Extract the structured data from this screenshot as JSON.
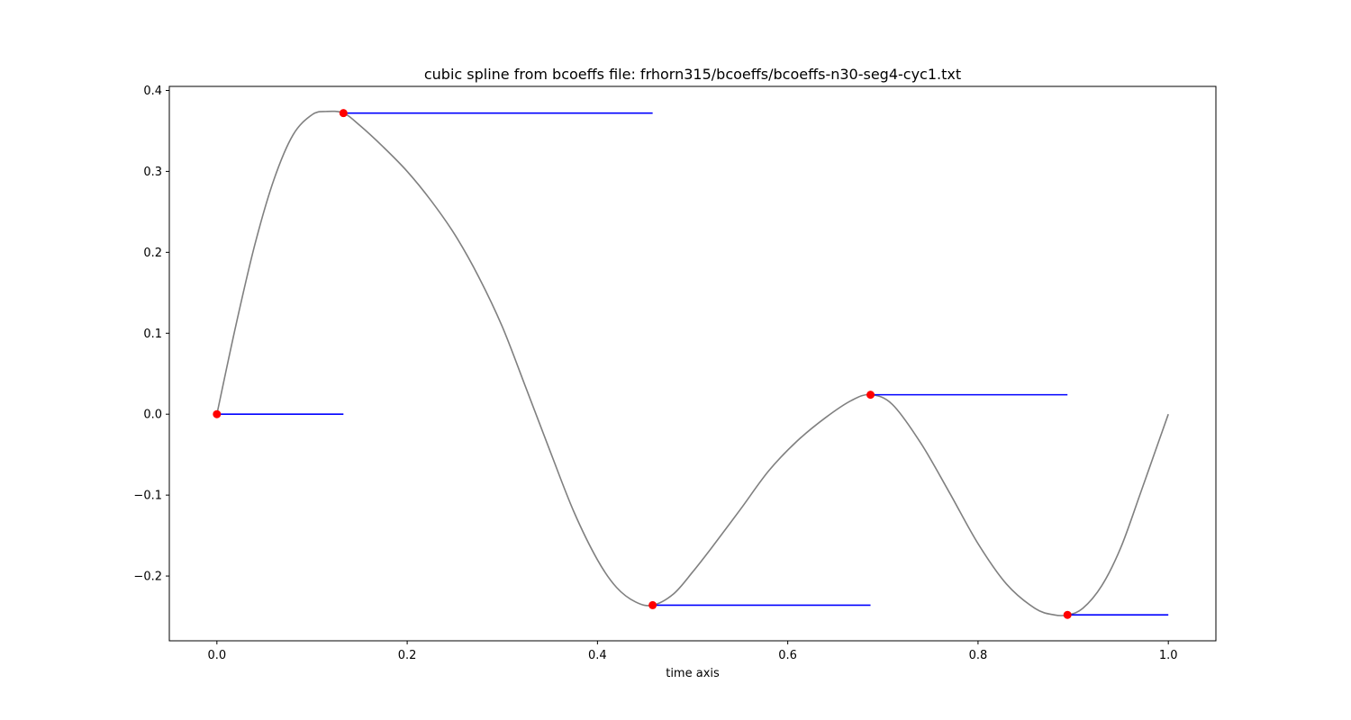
{
  "chart_data": {
    "type": "line",
    "title": "cubic spline from bcoeffs file: frhorn315/bcoeffs/bcoeffs-n30-seg4-cyc1.txt",
    "xlabel": "time axis",
    "ylabel": "",
    "xlim": [
      -0.05,
      1.05
    ],
    "ylim": [
      -0.28,
      0.405
    ],
    "grid": false,
    "legend": "none",
    "xticks": [
      0.0,
      0.2,
      0.4,
      0.6,
      0.8,
      1.0
    ],
    "xtick_labels": [
      "0.0",
      "0.2",
      "0.4",
      "0.6",
      "0.8",
      "1.0"
    ],
    "yticks": [
      0.4,
      0.3,
      0.2,
      0.1,
      0.0,
      -0.1,
      -0.2
    ],
    "ytick_labels": [
      "0.4",
      "0.3",
      "0.2",
      "0.1",
      "0.0",
      "−0.1",
      "−0.2"
    ],
    "spline": {
      "color": "#808080",
      "x": [
        0.0,
        0.02,
        0.04,
        0.06,
        0.08,
        0.1,
        0.115,
        0.133,
        0.15,
        0.175,
        0.2,
        0.225,
        0.25,
        0.275,
        0.3,
        0.325,
        0.35,
        0.375,
        0.4,
        0.42,
        0.44,
        0.458,
        0.48,
        0.5,
        0.52,
        0.55,
        0.58,
        0.61,
        0.64,
        0.667,
        0.687,
        0.71,
        0.74,
        0.77,
        0.8,
        0.83,
        0.86,
        0.88,
        0.894,
        0.91,
        0.93,
        0.95,
        0.97,
        0.985,
        1.0
      ],
      "y": [
        0.0,
        0.11,
        0.21,
        0.29,
        0.345,
        0.37,
        0.374,
        0.372,
        0.357,
        0.33,
        0.3,
        0.264,
        0.222,
        0.17,
        0.108,
        0.032,
        -0.045,
        -0.12,
        -0.18,
        -0.214,
        -0.232,
        -0.236,
        -0.222,
        -0.195,
        -0.165,
        -0.118,
        -0.07,
        -0.033,
        -0.004,
        0.017,
        0.024,
        0.012,
        -0.036,
        -0.097,
        -0.16,
        -0.21,
        -0.24,
        -0.248,
        -0.248,
        -0.24,
        -0.212,
        -0.165,
        -0.1,
        -0.05,
        0.0
      ]
    },
    "knots": {
      "color": "#ff0000",
      "x": [
        0.0,
        0.133,
        0.458,
        0.687,
        0.894
      ],
      "y": [
        0.0,
        0.372,
        -0.236,
        0.024,
        -0.248
      ]
    },
    "segments": {
      "color": "#0000ff",
      "items": [
        {
          "x0": 0.0,
          "x1": 0.133,
          "y": 0.0
        },
        {
          "x0": 0.133,
          "x1": 0.458,
          "y": 0.372
        },
        {
          "x0": 0.458,
          "x1": 0.687,
          "y": -0.236
        },
        {
          "x0": 0.687,
          "x1": 0.894,
          "y": 0.024
        },
        {
          "x0": 0.894,
          "x1": 1.0,
          "y": -0.248
        }
      ]
    }
  }
}
